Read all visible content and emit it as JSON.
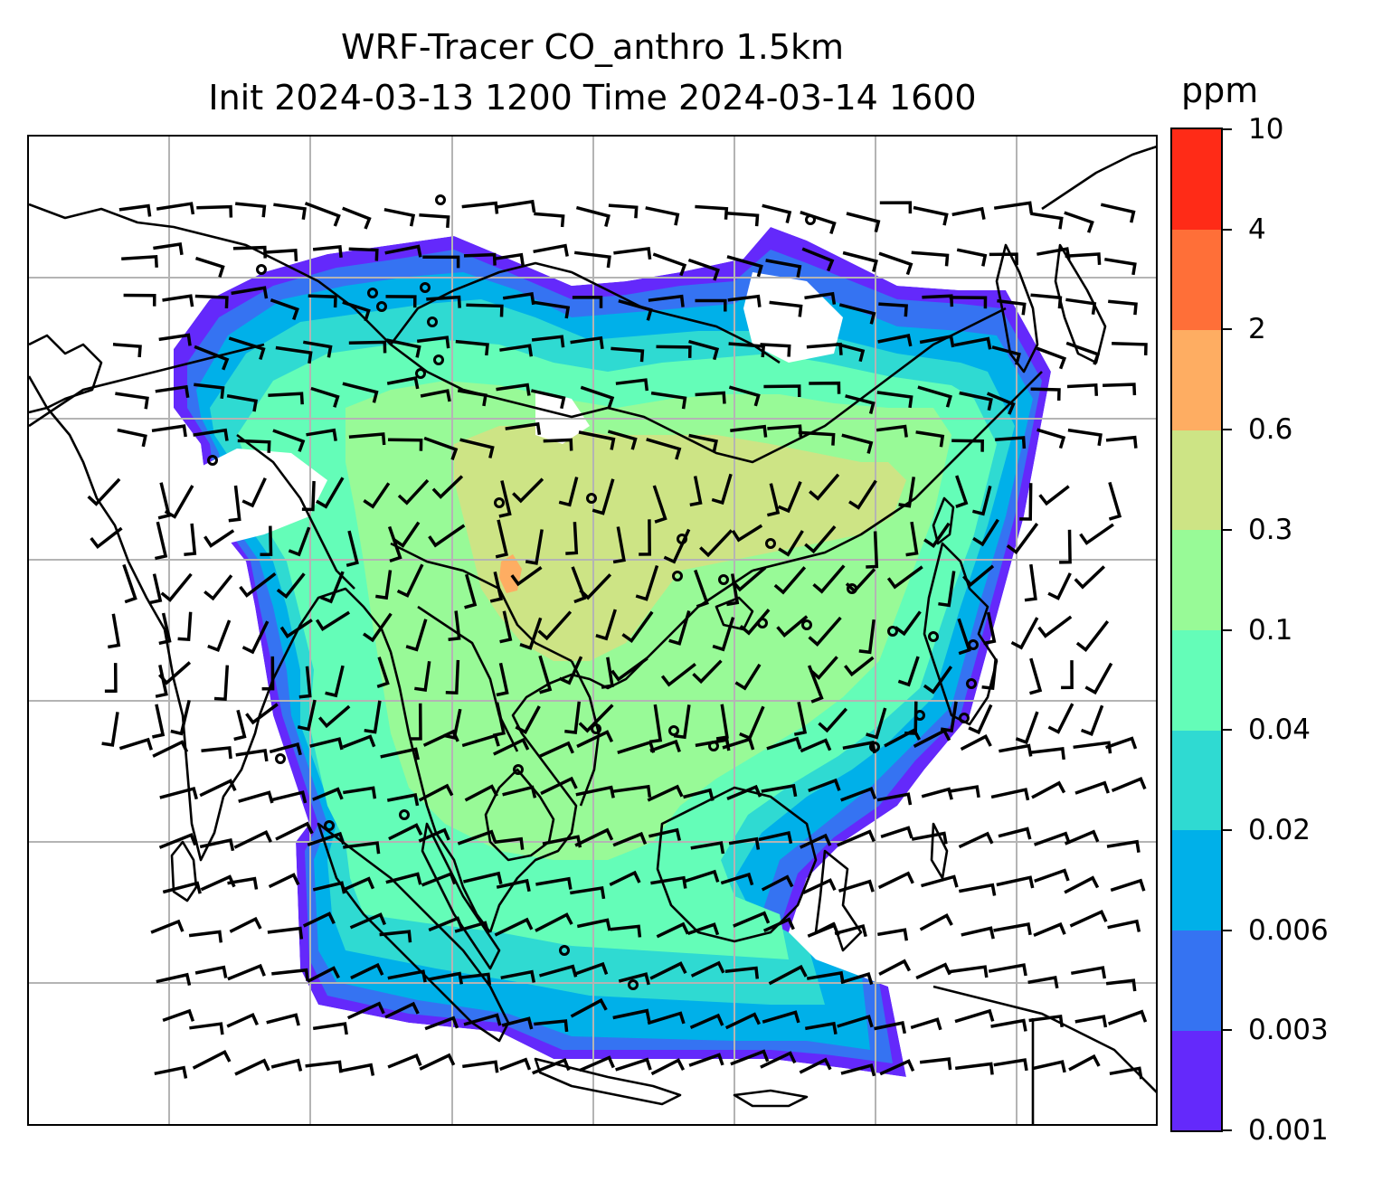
{
  "title": {
    "line1": "WRF-Tracer CO_anthro 1.5km",
    "line2": "Init 2024-03-13 1200 Time 2024-03-14 1600"
  },
  "colorbar": {
    "unit": "ppm",
    "levels": [
      "0.001",
      "0.003",
      "0.006",
      "0.02",
      "0.04",
      "0.1",
      "0.3",
      "0.6",
      "2",
      "4",
      "10"
    ],
    "colors": [
      "#6429fb",
      "#3573f2",
      "#00b0e9",
      "#2fdad2",
      "#64fdb8",
      "#98fa97",
      "#cde485",
      "#fead62",
      "#ff6f38",
      "#ff2b17"
    ]
  },
  "map": {
    "gridlines": true,
    "gridline_color": "#b4b4b4",
    "coastline_color": "#000000",
    "wind_barbs": true
  }
}
